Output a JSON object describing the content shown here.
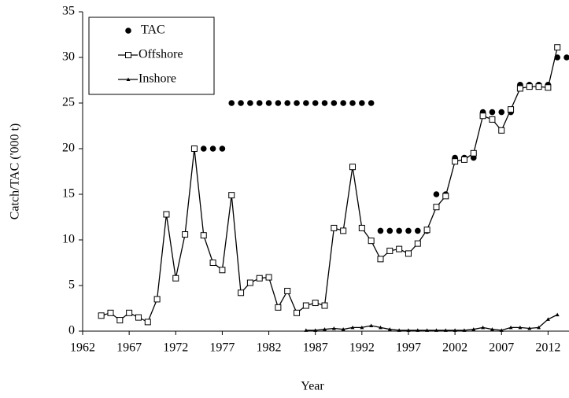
{
  "chart_data": {
    "type": "line",
    "x_label": "Year",
    "y_label": "Catch/TAC ('000 t)",
    "xlim": [
      1962,
      2014.25
    ],
    "ylim": [
      0,
      35
    ],
    "xticks": [
      1962,
      1967,
      1972,
      1977,
      1982,
      1987,
      1992,
      1997,
      2002,
      2007,
      2012
    ],
    "yticks": [
      0,
      5,
      10,
      15,
      20,
      25,
      30,
      35
    ],
    "grid": false,
    "legend": "upper left",
    "series": [
      {
        "name": "TAC",
        "color": "#000000",
        "marker": "circle",
        "line": false,
        "x": [
          1975,
          1976,
          1977,
          1978,
          1979,
          1980,
          1981,
          1982,
          1983,
          1984,
          1985,
          1986,
          1987,
          1988,
          1989,
          1990,
          1991,
          1992,
          1993,
          1994,
          1995,
          1996,
          1997,
          1998,
          1999,
          2000,
          2001,
          2002,
          2003,
          2004,
          2005,
          2006,
          2007,
          2008,
          2009,
          2010,
          2011,
          2012,
          2013,
          2014
        ],
        "values": [
          20,
          20,
          20,
          25,
          25,
          25,
          25,
          25,
          25,
          25,
          25,
          25,
          25,
          25,
          25,
          25,
          25,
          25,
          25,
          11,
          11,
          11,
          11,
          11,
          11,
          15,
          15,
          19,
          19,
          19,
          24,
          24,
          24,
          24,
          27,
          27,
          27,
          27,
          30,
          30
        ]
      },
      {
        "name": "Offshore",
        "color": "#000000",
        "marker": "square",
        "line": true,
        "x": [
          1964,
          1965,
          1966,
          1967,
          1968,
          1969,
          1970,
          1971,
          1972,
          1973,
          1974,
          1975,
          1976,
          1977,
          1978,
          1979,
          1980,
          1981,
          1982,
          1983,
          1984,
          1985,
          1986,
          1987,
          1988,
          1989,
          1990,
          1991,
          1992,
          1993,
          1994,
          1995,
          1996,
          1997,
          1998,
          1999,
          2000,
          2001,
          2002,
          2003,
          2004,
          2005,
          2006,
          2007,
          2008,
          2009,
          2010,
          2011,
          2012,
          2013
        ],
        "values": [
          1.7,
          2.0,
          1.2,
          2.0,
          1.5,
          1.0,
          3.5,
          12.8,
          5.8,
          10.6,
          20.0,
          10.5,
          7.5,
          6.7,
          14.9,
          4.2,
          5.3,
          5.8,
          5.9,
          2.6,
          4.4,
          2.0,
          2.8,
          3.1,
          2.8,
          11.3,
          11.0,
          18.0,
          11.3,
          9.9,
          7.9,
          8.8,
          9.0,
          8.5,
          9.6,
          11.1,
          13.6,
          14.8,
          18.6,
          18.8,
          19.5,
          23.6,
          23.2,
          22.0,
          24.3,
          26.6,
          26.8,
          26.8,
          26.7,
          31.1
        ]
      },
      {
        "name": "Inshore",
        "color": "#000000",
        "marker": "triangle",
        "line": true,
        "x": [
          1986,
          1987,
          1988,
          1989,
          1990,
          1991,
          1992,
          1993,
          1994,
          1995,
          1996,
          1997,
          1998,
          1999,
          2000,
          2001,
          2002,
          2003,
          2004,
          2005,
          2006,
          2007,
          2008,
          2009,
          2010,
          2011,
          2012,
          2013
        ],
        "values": [
          0.1,
          0.1,
          0.2,
          0.3,
          0.2,
          0.4,
          0.4,
          0.6,
          0.4,
          0.2,
          0.1,
          0.1,
          0.1,
          0.1,
          0.1,
          0.1,
          0.1,
          0.1,
          0.2,
          0.4,
          0.2,
          0.1,
          0.4,
          0.4,
          0.3,
          0.4,
          1.3,
          1.8
        ]
      }
    ]
  }
}
